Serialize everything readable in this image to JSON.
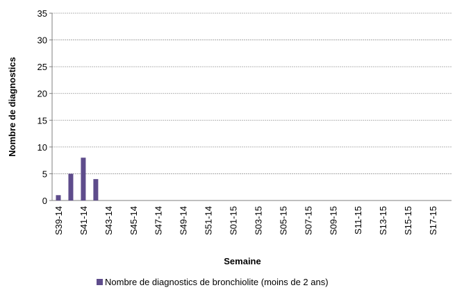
{
  "chart_data": {
    "type": "bar",
    "xlabel": "Semaine",
    "ylabel": "Nombre de diagnostics",
    "categories": [
      "S39-14",
      null,
      "S41-14",
      null,
      "S43-14",
      null,
      "S45-14",
      null,
      "S47-14",
      null,
      "S49-14",
      null,
      "S51-14",
      null,
      "S01-15",
      null,
      "S03-15",
      null,
      "S05-15",
      null,
      "S07-15",
      null,
      "S09-15",
      null,
      "S11-15",
      null,
      "S13-15",
      null,
      "S15-15",
      null,
      "S17-15",
      null
    ],
    "series": [
      {
        "name": "Nombre de diagnostics de bronchiolite (moins de 2 ans)",
        "color": "#5e4c8c",
        "values": [
          1,
          5,
          8,
          4,
          0,
          0,
          0,
          0,
          0,
          0,
          0,
          0,
          0,
          0,
          0,
          0,
          0,
          0,
          0,
          0,
          0,
          0,
          0,
          0,
          0,
          0,
          0,
          0,
          0,
          0,
          0,
          0
        ]
      }
    ],
    "ylim": [
      0,
      35
    ],
    "yticks": [
      0,
      5,
      10,
      15,
      20,
      25,
      30,
      35
    ],
    "grid": true,
    "legend": "bottom"
  }
}
